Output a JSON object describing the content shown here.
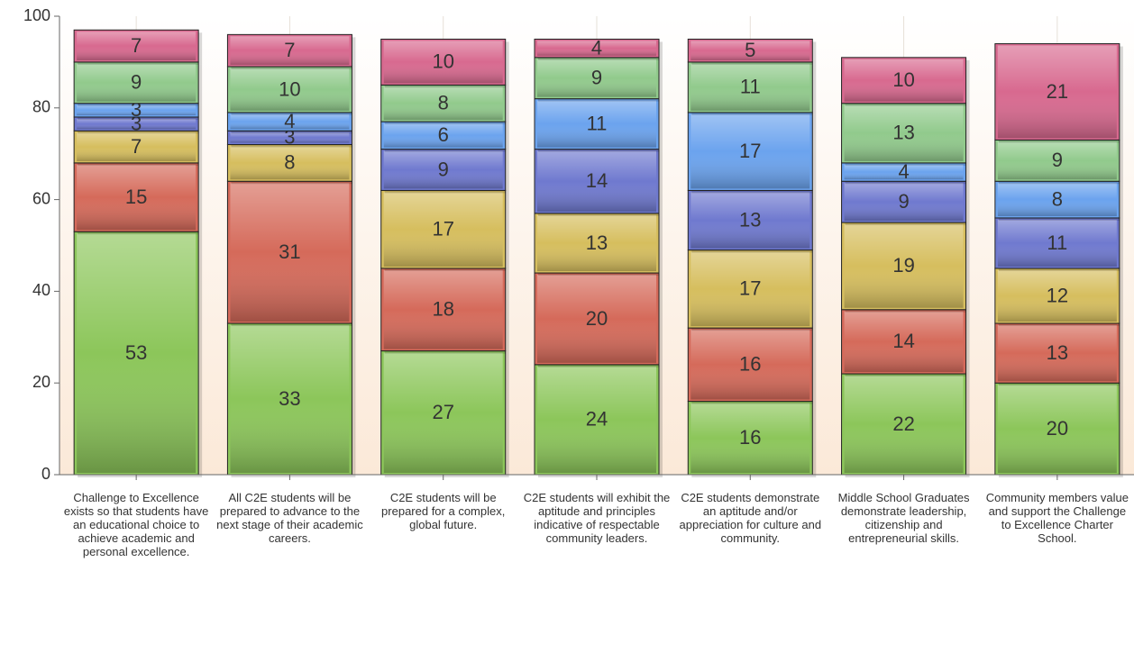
{
  "chart_data": {
    "type": "stacked_bar",
    "categories": [
      "Challenge to Excellence exists so that students have an educational choice to achieve academic and personal excellence.",
      "All C2E students will be prepared to advance to the next stage of their academic careers.",
      "C2E students will be prepared for a complex, global future.",
      "C2E students will exhibit the aptitude and principles indicative of respectable community leaders.",
      "C2E students demonstrate an aptitude and/or appreciation for culture and community.",
      "Middle School Graduates demonstrate leadership, citizenship and entrepreneurial skills.",
      "Community members value and support the Challenge to Excellence Charter School."
    ],
    "series": [
      {
        "color": "#8cc65a",
        "values": [
          53,
          33,
          27,
          24,
          16,
          22,
          20
        ]
      },
      {
        "color": "#d56a5a",
        "values": [
          15,
          31,
          18,
          20,
          16,
          14,
          13
        ]
      },
      {
        "color": "#d6be5e",
        "values": [
          7,
          8,
          17,
          13,
          17,
          19,
          12
        ]
      },
      {
        "color": "#6f79cf",
        "values": [
          3,
          3,
          9,
          14,
          13,
          9,
          11
        ]
      },
      {
        "color": "#6ba3ee",
        "values": [
          3,
          4,
          6,
          11,
          17,
          4,
          8
        ]
      },
      {
        "color": "#91ca8c",
        "values": [
          9,
          10,
          8,
          9,
          11,
          13,
          9
        ]
      },
      {
        "color": "#d8698f",
        "values": [
          7,
          7,
          10,
          4,
          5,
          10,
          21
        ]
      }
    ],
    "ylim": [
      0,
      100
    ],
    "yticks": [
      0,
      20,
      40,
      60,
      80,
      100
    ],
    "grid": false
  }
}
